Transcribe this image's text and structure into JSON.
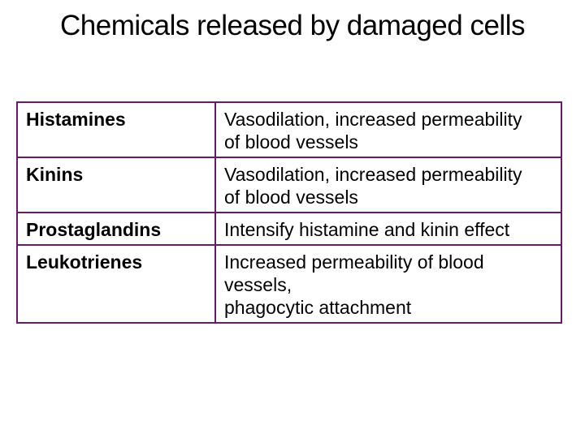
{
  "slide": {
    "title": "Chemicals released by damaged cells",
    "table": {
      "rows": [
        {
          "name": "Histamines",
          "effect": "Vasodilation, increased permeability\nof blood vessels"
        },
        {
          "name": "Kinins",
          "effect": "Vasodilation, increased permeability\nof blood vessels"
        },
        {
          "name": "Prostaglandins",
          "effect": "Intensify histamine and kinin effect"
        },
        {
          "name": "Leukotrienes",
          "effect": "Increased permeability of blood vessels,\nphagocytic attachment"
        }
      ]
    },
    "colors": {
      "background": "#ffffff",
      "title_text": "#000000",
      "body_text": "#000000",
      "table_border": "#671c67"
    }
  }
}
